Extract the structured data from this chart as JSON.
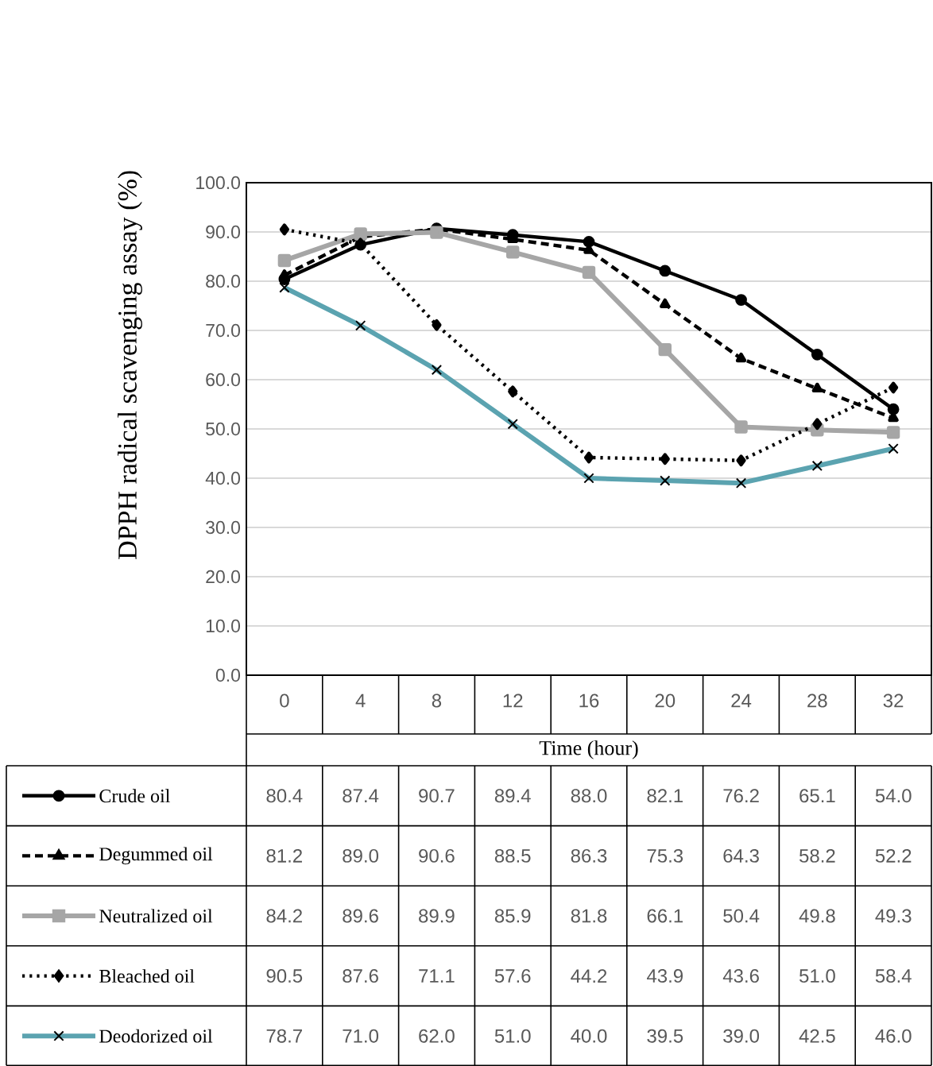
{
  "chart_data": {
    "type": "line",
    "ylabel": "DPPH radical scavenging assay (%)",
    "xlabel": "Time (hour)",
    "categories": [
      "0",
      "4",
      "8",
      "12",
      "16",
      "20",
      "24",
      "28",
      "32"
    ],
    "ylim": [
      0,
      100
    ],
    "yticks": [
      {
        "value": 0,
        "label": "0.0"
      },
      {
        "value": 10,
        "label": "10.0"
      },
      {
        "value": 20,
        "label": "20.0"
      },
      {
        "value": 30,
        "label": "30.0"
      },
      {
        "value": 40,
        "label": "40.0"
      },
      {
        "value": 50,
        "label": "50.0"
      },
      {
        "value": 60,
        "label": "60.0"
      },
      {
        "value": 70,
        "label": "70.0"
      },
      {
        "value": 80,
        "label": "80.0"
      },
      {
        "value": 90,
        "label": "90.0"
      },
      {
        "value": 100,
        "label": "100.0"
      }
    ],
    "grid": "y",
    "legend": "bottom",
    "series": [
      {
        "name": "Crude oil",
        "color": "#000000",
        "marker": "circle",
        "line_style": "solid",
        "values": [
          80.4,
          87.4,
          90.7,
          89.4,
          88.0,
          82.1,
          76.2,
          65.1,
          54.0
        ],
        "value_labels": [
          "80.4",
          "87.4",
          "90.7",
          "89.4",
          "88.0",
          "82.1",
          "76.2",
          "65.1",
          "54.0"
        ]
      },
      {
        "name": "Degummed oil",
        "color": "#000000",
        "marker": "triangle",
        "line_style": "dashed",
        "values": [
          81.2,
          89.0,
          90.6,
          88.5,
          86.3,
          75.3,
          64.3,
          58.2,
          52.2
        ],
        "value_labels": [
          "81.2",
          "89.0",
          "90.6",
          "88.5",
          "86.3",
          "75.3",
          "64.3",
          "58.2",
          "52.2"
        ]
      },
      {
        "name": "Neutralized oil",
        "color": "#a6a6a6",
        "marker": "square",
        "line_style": "solid",
        "values": [
          84.2,
          89.6,
          89.9,
          85.9,
          81.8,
          66.1,
          50.4,
          49.8,
          49.3
        ],
        "value_labels": [
          "84.2",
          "89.6",
          "89.9",
          "85.9",
          "81.8",
          "66.1",
          "50.4",
          "49.8",
          "49.3"
        ]
      },
      {
        "name": "Bleached oil",
        "color": "#000000",
        "marker": "diamond",
        "line_style": "dotted",
        "values": [
          90.5,
          87.6,
          71.1,
          57.6,
          44.2,
          43.9,
          43.6,
          51.0,
          58.4
        ],
        "value_labels": [
          "90.5",
          "87.6",
          "71.1",
          "57.6",
          "44.2",
          "43.9",
          "43.6",
          "51.0",
          "58.4"
        ]
      },
      {
        "name": "Deodorized oil",
        "color": "#5ba3b0",
        "marker": "cross",
        "line_style": "solid",
        "values": [
          78.7,
          71.0,
          62.0,
          51.0,
          40.0,
          39.5,
          39.0,
          42.5,
          46.0
        ],
        "value_labels": [
          "78.7",
          "71.0",
          "62.0",
          "51.0",
          "40.0",
          "39.5",
          "39.0",
          "42.5",
          "46.0"
        ]
      }
    ]
  }
}
